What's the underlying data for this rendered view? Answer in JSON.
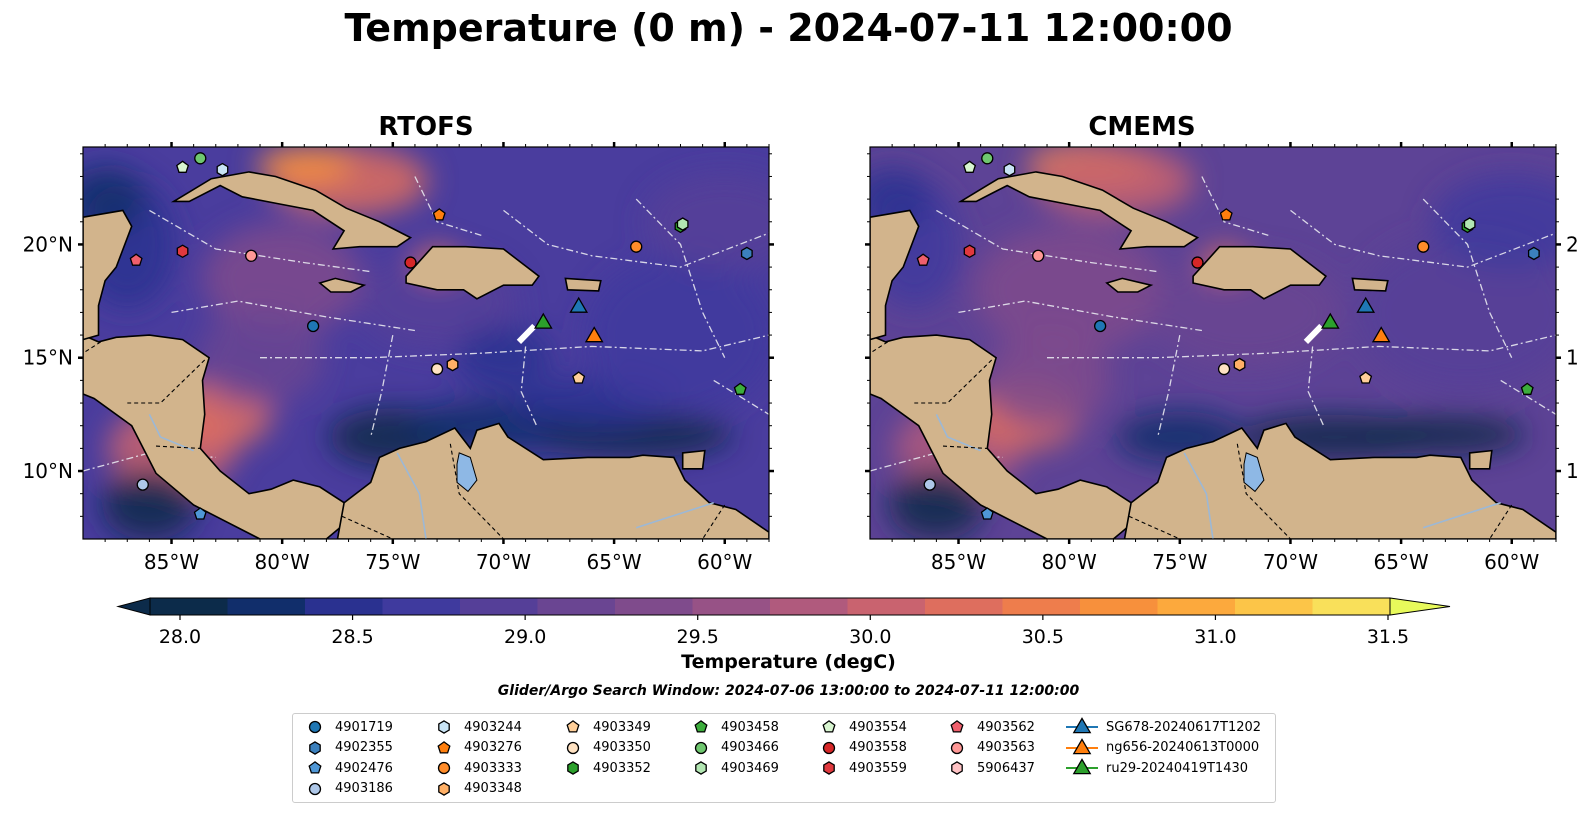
{
  "title": "Temperature (0 m) - 2024-07-11 12:00:00",
  "panels": [
    {
      "title": "RTOFS"
    },
    {
      "title": "CMEMS"
    }
  ],
  "map": {
    "lon_range": [
      -89,
      -58
    ],
    "lat_range": [
      7,
      24.3
    ],
    "lon_ticks": [
      "85°W",
      "80°W",
      "75°W",
      "70°W",
      "65°W",
      "60°W"
    ],
    "lat_ticks": [
      "20°N",
      "15°N",
      "10°N"
    ],
    "land_color": "#d2b48c",
    "lake_color": "#8eb8e5"
  },
  "colorbar": {
    "label": "Temperature (degC)",
    "min": 28.0,
    "max": 31.5,
    "ticks": [
      "28.0",
      "28.5",
      "29.0",
      "29.5",
      "30.0",
      "30.5",
      "31.0",
      "31.5"
    ],
    "colors": [
      "#0c2b4a",
      "#112e6b",
      "#2a3190",
      "#3f3a9e",
      "#553f98",
      "#6a4592",
      "#7f4b8c",
      "#975286",
      "#b05a7d",
      "#c9636f",
      "#de6e5e",
      "#ee7d4c",
      "#f7903c",
      "#fca93d",
      "#fcc548",
      "#f9e05a",
      "#e8fa5b"
    ]
  },
  "search_window": "Glider/Argo Search Window: 2024-07-06 13:00:00 to 2024-07-11 12:00:00",
  "legend": [
    {
      "label": "4901719",
      "marker": "circle",
      "color": "#1f77b4"
    },
    {
      "label": "4902355",
      "marker": "hexagon",
      "color": "#3b80bd"
    },
    {
      "label": "4902476",
      "marker": "pentagon",
      "color": "#4f97d6"
    },
    {
      "label": "4903186",
      "marker": "circle",
      "color": "#aec7e8"
    },
    {
      "label": "4903244",
      "marker": "hexagon",
      "color": "#c9e4f5"
    },
    {
      "label": "4903276",
      "marker": "pentagon",
      "color": "#ff7f0e"
    },
    {
      "label": "4903333",
      "marker": "circle",
      "color": "#ff8c2a"
    },
    {
      "label": "4903348",
      "marker": "hexagon",
      "color": "#ffb066"
    },
    {
      "label": "4903349",
      "marker": "pentagon",
      "color": "#ffcf99"
    },
    {
      "label": "4903350",
      "marker": "circle",
      "color": "#ffe2c2"
    },
    {
      "label": "4903352",
      "marker": "hexagon",
      "color": "#2ca02c"
    },
    {
      "label": "4903458",
      "marker": "pentagon",
      "color": "#3cad3c"
    },
    {
      "label": "4903466",
      "marker": "circle",
      "color": "#6fc76f"
    },
    {
      "label": "4903469",
      "marker": "hexagon",
      "color": "#b2e6b2"
    },
    {
      "label": "4903554",
      "marker": "pentagon",
      "color": "#d8f5d0"
    },
    {
      "label": "4903558",
      "marker": "circle",
      "color": "#d62728"
    },
    {
      "label": "4903559",
      "marker": "hexagon",
      "color": "#e0393e"
    },
    {
      "label": "4903562",
      "marker": "pentagon",
      "color": "#ef5f6c"
    },
    {
      "label": "4903563",
      "marker": "circle",
      "color": "#ff9896"
    },
    {
      "label": "5906437",
      "marker": "hexagon",
      "color": "#ffc2c4"
    },
    {
      "label": "SG678-20240617T1202",
      "marker": "triangle",
      "color": "#1f77b4"
    },
    {
      "label": "ng656-20240613T0000",
      "marker": "triangle",
      "color": "#ff7f0e"
    },
    {
      "label": "ru29-20240419T1430",
      "marker": "triangle",
      "color": "#2ca02c"
    }
  ],
  "floats": [
    {
      "id": "4901719",
      "lon": -78.6,
      "lat": 16.4
    },
    {
      "id": "4902355",
      "lon": -59.0,
      "lat": 19.6
    },
    {
      "id": "4902476",
      "lon": -83.7,
      "lat": 8.1
    },
    {
      "id": "4903186",
      "lon": -86.3,
      "lat": 9.4
    },
    {
      "id": "4903244",
      "lon": -82.7,
      "lat": 23.3
    },
    {
      "id": "4903276",
      "lon": -72.9,
      "lat": 21.3
    },
    {
      "id": "4903333",
      "lon": -64.0,
      "lat": 19.9
    },
    {
      "id": "4903348",
      "lon": -72.3,
      "lat": 14.7
    },
    {
      "id": "4903349",
      "lon": -66.6,
      "lat": 14.1
    },
    {
      "id": "4903350",
      "lon": -73.0,
      "lat": 14.5
    },
    {
      "id": "4903352",
      "lon": -62.0,
      "lat": 20.8
    },
    {
      "id": "4903458",
      "lon": -59.3,
      "lat": 13.6
    },
    {
      "id": "4903466",
      "lon": -83.7,
      "lat": 23.8
    },
    {
      "id": "4903469",
      "lon": -61.9,
      "lat": 20.9
    },
    {
      "id": "4903554",
      "lon": -84.5,
      "lat": 23.4
    },
    {
      "id": "4903558",
      "lon": -74.2,
      "lat": 19.2
    },
    {
      "id": "4903559",
      "lon": -84.5,
      "lat": 19.7
    },
    {
      "id": "4903562",
      "lon": -86.6,
      "lat": 19.3
    },
    {
      "id": "4903563",
      "lon": -81.4,
      "lat": 19.5
    },
    {
      "id": "SG678-20240617T1202",
      "lon": -66.6,
      "lat": 17.3
    },
    {
      "id": "ng656-20240613T0000",
      "lon": -65.9,
      "lat": 16.0
    },
    {
      "id": "ru29-20240419T1430",
      "lon": -68.2,
      "lat": 16.6
    }
  ]
}
